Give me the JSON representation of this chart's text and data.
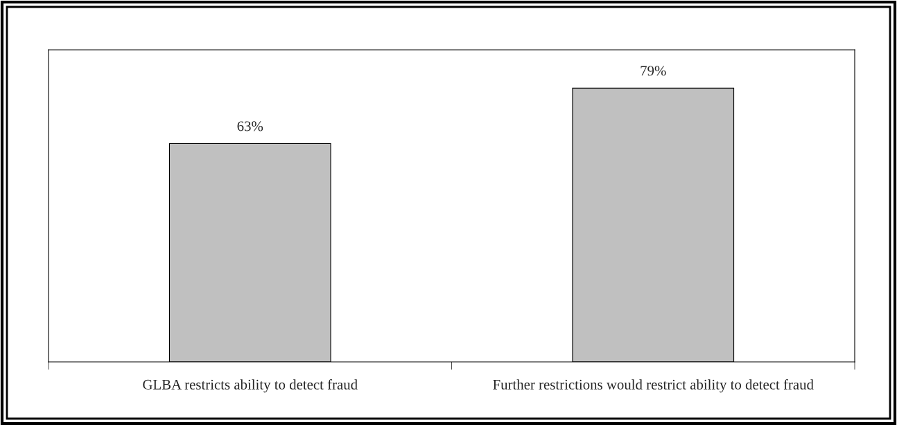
{
  "chart_data": {
    "type": "bar",
    "categories": [
      "GLBA restricts ability to detect fraud",
      "Further restrictions would restrict ability to detect fraud"
    ],
    "values": [
      63,
      79
    ],
    "value_labels": [
      "63%",
      "79%"
    ],
    "color": "#c0c0c0",
    "grid": false,
    "legend": false
  }
}
